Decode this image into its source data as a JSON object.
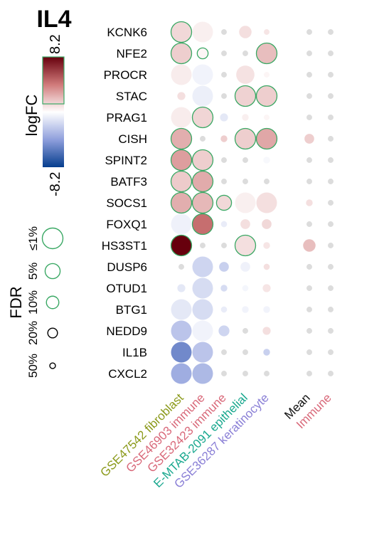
{
  "chart_data": {
    "type": "bubble-heatmap",
    "title": "IL4",
    "color_legend": {
      "title": "logFC",
      "max_label": "8.2",
      "min_label": "-8.2",
      "range": [
        -8.2,
        8.2
      ]
    },
    "size_legend": {
      "title": "FDR",
      "levels": [
        "≤1%",
        "5%",
        "10%",
        "20%",
        "50%"
      ],
      "levels_fdr": [
        0.01,
        0.05,
        0.1,
        0.2,
        0.5
      ]
    },
    "genes": [
      "KCNK6",
      "NFE2",
      "PROCR",
      "STAC",
      "PRAG1",
      "CISH",
      "SPINT2",
      "BATF3",
      "SOCS1",
      "FOXQ1",
      "HS3ST1",
      "DUSP6",
      "OTUD1",
      "BTG1",
      "NEDD9",
      "IL1B",
      "CXCL2"
    ],
    "columns": [
      {
        "label": "GSE47542 fibroblast",
        "color": "#8b9a1b"
      },
      {
        "label": "GSE46903 immune",
        "color": "#d9697a"
      },
      {
        "label": "GSE32423 immune",
        "color": "#d9697a"
      },
      {
        "label": "E-MTAB-2091 epithelial",
        "color": "#1aa88f"
      },
      {
        "label": "GSE36287 keratinocyte",
        "color": "#8a7fd6"
      }
    ],
    "summary_columns": [
      {
        "label": "Mean",
        "color": "#111111"
      },
      {
        "label": "Immune",
        "color": "#d9697a"
      }
    ],
    "cells": [
      [
        [
          1.2,
          0.01,
          1
        ],
        [
          0.5,
          0.01,
          0
        ],
        [
          0,
          0.5,
          0
        ],
        [
          1,
          0.1,
          0
        ],
        [
          0.8,
          0.5,
          0
        ],
        [
          0,
          0.5,
          0
        ],
        [
          0,
          0.5,
          0
        ]
      ],
      [
        [
          1.5,
          0.01,
          1
        ],
        [
          0.3,
          0.15,
          1
        ],
        [
          0,
          0.5,
          0
        ],
        [
          0,
          0.5,
          0
        ],
        [
          2.0,
          0.01,
          1
        ],
        [
          0,
          0.5,
          0
        ],
        [
          0,
          0.5,
          0
        ]
      ],
      [
        [
          0.6,
          0.01,
          0
        ],
        [
          -0.5,
          0.01,
          0
        ],
        [
          0,
          0.5,
          0
        ],
        [
          0.9,
          0.02,
          0
        ],
        [
          0.3,
          0.5,
          0
        ],
        [
          0,
          0.5,
          0
        ],
        [
          0,
          0.5,
          0
        ]
      ],
      [
        [
          1.0,
          0.3,
          0
        ],
        [
          -0.7,
          0.01,
          0
        ],
        [
          0,
          0.5,
          0
        ],
        [
          1.4,
          0.01,
          1
        ],
        [
          1.5,
          0.01,
          1
        ],
        [
          0,
          0.5,
          0
        ],
        [
          0,
          0.5,
          0
        ]
      ],
      [
        [
          0.6,
          0.01,
          0
        ],
        [
          1.3,
          0.01,
          1
        ],
        [
          -1.0,
          0.3,
          0
        ],
        [
          0.5,
          0.4,
          0
        ],
        [
          0.3,
          0.5,
          0
        ],
        [
          0,
          0.5,
          0
        ],
        [
          0,
          0.5,
          0
        ]
      ],
      [
        [
          2.5,
          0.01,
          1
        ],
        [
          0,
          0.5,
          0
        ],
        [
          1.5,
          0.4,
          0
        ],
        [
          1.5,
          0.01,
          1
        ],
        [
          2.7,
          0.01,
          1
        ],
        [
          1.5,
          0.2,
          0
        ],
        [
          0,
          0.5,
          0
        ]
      ],
      [
        [
          3.0,
          0.01,
          1
        ],
        [
          1.5,
          0.01,
          1
        ],
        [
          0,
          0.5,
          0
        ],
        [
          0,
          0.5,
          0
        ],
        [
          -0.3,
          0.4,
          0
        ],
        [
          0,
          0.5,
          0
        ],
        [
          0,
          0.5,
          0
        ]
      ],
      [
        [
          1.6,
          0.01,
          1
        ],
        [
          2.6,
          0.01,
          1
        ],
        [
          0,
          0.5,
          0
        ],
        [
          0,
          0.5,
          0
        ],
        [
          0,
          0.5,
          0
        ],
        [
          0,
          0.5,
          0
        ],
        [
          0,
          0.5,
          0
        ]
      ],
      [
        [
          2.5,
          0.01,
          1
        ],
        [
          2.2,
          0.01,
          1
        ],
        [
          1.2,
          0.05,
          1
        ],
        [
          0.5,
          0.01,
          0
        ],
        [
          1.0,
          0.01,
          0
        ],
        [
          1.0,
          0.4,
          0
        ],
        [
          0,
          0.5,
          0
        ]
      ],
      [
        [
          -0.6,
          0.01,
          0
        ],
        [
          4.5,
          0.01,
          1
        ],
        [
          -0.8,
          0.45,
          0
        ],
        [
          1.0,
          0.2,
          0
        ],
        [
          1.2,
          0.2,
          0
        ],
        [
          0,
          0.5,
          0
        ],
        [
          0,
          0.5,
          0
        ]
      ],
      [
        [
          8.2,
          0.01,
          1
        ],
        [
          0,
          0.5,
          0
        ],
        [
          0,
          0.5,
          0
        ],
        [
          1.0,
          0.01,
          1
        ],
        [
          0.8,
          0.4,
          0
        ],
        [
          2.0,
          0.1,
          0
        ],
        [
          0,
          0.5,
          0
        ]
      ],
      [
        [
          0,
          0.5,
          0
        ],
        [
          -1.8,
          0.01,
          0
        ],
        [
          -2.0,
          0.2,
          0
        ],
        [
          -0.6,
          0.2,
          0
        ],
        [
          1.0,
          0.45,
          0
        ],
        [
          0,
          0.5,
          0
        ],
        [
          0,
          0.5,
          0
        ]
      ],
      [
        [
          -1.0,
          0.3,
          0
        ],
        [
          -1.5,
          0.01,
          0
        ],
        [
          -1.5,
          0.4,
          0
        ],
        [
          -0.4,
          0.45,
          0
        ],
        [
          0.8,
          0.3,
          0
        ],
        [
          0,
          0.5,
          0
        ],
        [
          0,
          0.5,
          0
        ]
      ],
      [
        [
          -1.0,
          0.01,
          0
        ],
        [
          -1.5,
          0.01,
          0
        ],
        [
          -0.8,
          0.45,
          0
        ],
        [
          -0.5,
          0.4,
          0
        ],
        [
          -0.5,
          0.4,
          0
        ],
        [
          0,
          0.5,
          0
        ],
        [
          0,
          0.5,
          0
        ]
      ],
      [
        [
          -2.5,
          0.01,
          0
        ],
        [
          -0.5,
          0.01,
          0
        ],
        [
          -1.8,
          0.15,
          0
        ],
        [
          0,
          0.5,
          0
        ],
        [
          1.0,
          0.3,
          0
        ],
        [
          0,
          0.5,
          0
        ],
        [
          0,
          0.5,
          0
        ]
      ],
      [
        [
          -5.0,
          0.01,
          0
        ],
        [
          -2.5,
          0.01,
          0
        ],
        [
          0,
          0.5,
          0
        ],
        [
          0,
          0.5,
          0
        ],
        [
          -2.0,
          0.4,
          0
        ],
        [
          0,
          0.5,
          0
        ],
        [
          0,
          0.5,
          0
        ]
      ],
      [
        [
          -3.5,
          0.01,
          0
        ],
        [
          -3.0,
          0.01,
          0
        ],
        [
          0,
          0.5,
          0
        ],
        [
          0,
          0.5,
          0
        ],
        [
          0,
          0.5,
          0
        ],
        [
          0,
          0.5,
          0
        ],
        [
          0,
          0.5,
          0
        ]
      ]
    ],
    "legend_colors": {
      "high": "#67000d",
      "mid": "#ffffff",
      "low": "#053d8e",
      "significant_outline": "#3aa864"
    }
  }
}
